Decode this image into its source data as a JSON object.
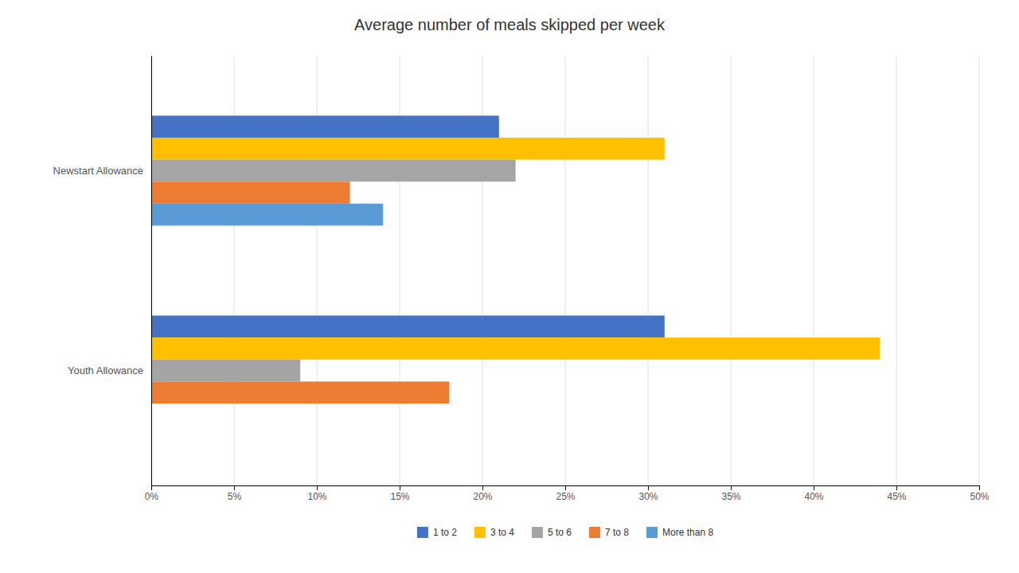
{
  "chart_data": {
    "type": "bar",
    "orientation": "horizontal",
    "title": "Average number of meals skipped per week",
    "categories": [
      "Newstart Allowance",
      "Youth Allowance"
    ],
    "series": [
      {
        "name": "1 to 2",
        "color": "#4472C4",
        "values": [
          0.21,
          0.31
        ]
      },
      {
        "name": "3 to 4",
        "color": "#FFC000",
        "values": [
          0.31,
          0.44
        ]
      },
      {
        "name": "5 to 6",
        "color": "#A5A5A5",
        "values": [
          0.22,
          0.09
        ]
      },
      {
        "name": "7 to 8",
        "color": "#ED7D31",
        "values": [
          0.12,
          0.18
        ]
      },
      {
        "name": "More than 8",
        "color": "#5B9BD5",
        "values": [
          0.14,
          0.0
        ]
      }
    ],
    "xlim": [
      0,
      0.5
    ],
    "xticks": [
      {
        "value": 0,
        "label": "0%"
      },
      {
        "value": 0.05,
        "label": "5%"
      },
      {
        "value": 0.1,
        "label": "10%"
      },
      {
        "value": 0.15,
        "label": "15%"
      },
      {
        "value": 0.2,
        "label": "20%"
      },
      {
        "value": 0.25,
        "label": "25%"
      },
      {
        "value": 0.3,
        "label": "30%"
      },
      {
        "value": 0.35,
        "label": "35%"
      },
      {
        "value": 0.4,
        "label": "40%"
      },
      {
        "value": 0.45,
        "label": "45%"
      },
      {
        "value": 0.5,
        "label": "50%"
      }
    ],
    "grid": true,
    "legend": "bottom"
  }
}
